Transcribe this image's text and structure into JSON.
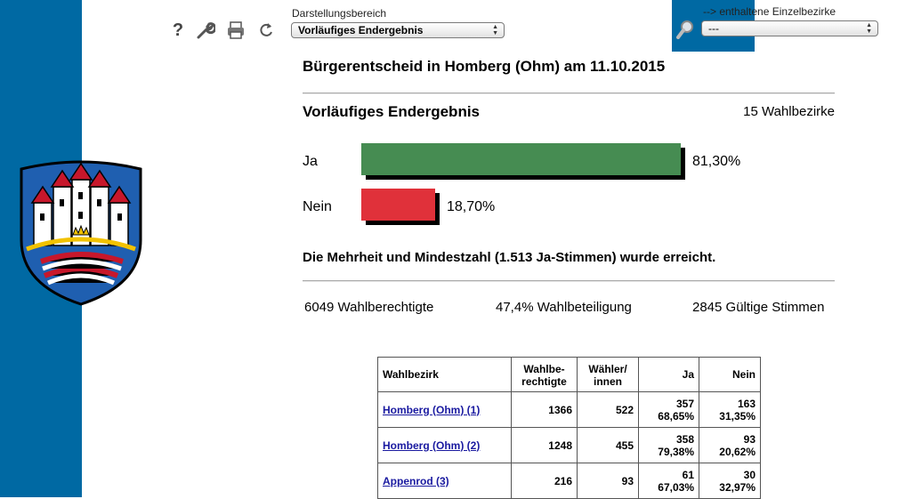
{
  "colors": {
    "sidebar": "#0069a3",
    "ja_bar": "#468c52",
    "nein_bar": "#e0313a",
    "link": "#1a1aa0"
  },
  "toolbar": {
    "icons": [
      "help-icon",
      "wrench-icon",
      "print-icon",
      "refresh-icon"
    ],
    "help_glyph": "?",
    "scope_label": "Darstellungsbereich",
    "scope_value": "Vorläufiges Endergebnis",
    "district_label": "--> enthaltene Einzelbezirke",
    "district_value": "---"
  },
  "header": {
    "title": "Bürgerentscheid in Homberg (Ohm) am 11.10.2015"
  },
  "result": {
    "subtitle": "Vorläufiges Endergebnis",
    "districts": "15 Wahlbezirke",
    "ja": {
      "label": "Ja",
      "percent": 81.3,
      "percent_text": "81,30%"
    },
    "nein": {
      "label": "Nein",
      "percent": 18.7,
      "percent_text": "18,70%"
    },
    "majority_text": "Die Mehrheit und Mindestzahl (1.513 Ja-Stimmen) wurde erreicht."
  },
  "stats": {
    "eligible": "6049 Wahlberechtigte",
    "turnout": "47,4% Wahlbeteiligung",
    "valid": "2845 Gültige Stimmen"
  },
  "table": {
    "headers": {
      "district": "Wahlbezirk",
      "eligible_1": "Wahlbe-",
      "eligible_2": "rechtigte",
      "voters_1": "Wähler/",
      "voters_2": "innen",
      "ja": "Ja",
      "nein": "Nein"
    },
    "rows": [
      {
        "name": "Homberg (Ohm) (1)",
        "eligible": "1366",
        "voters": "522",
        "ja": "357",
        "ja_pct": "68,65%",
        "nein": "163",
        "nein_pct": "31,35%"
      },
      {
        "name": "Homberg (Ohm) (2)",
        "eligible": "1248",
        "voters": "455",
        "ja": "358",
        "ja_pct": "79,38%",
        "nein": "93",
        "nein_pct": "20,62%"
      },
      {
        "name": "Appenrod (3)",
        "eligible": "216",
        "voters": "93",
        "ja": "61",
        "ja_pct": "67,03%",
        "nein": "30",
        "nein_pct": "32,97%"
      }
    ]
  }
}
